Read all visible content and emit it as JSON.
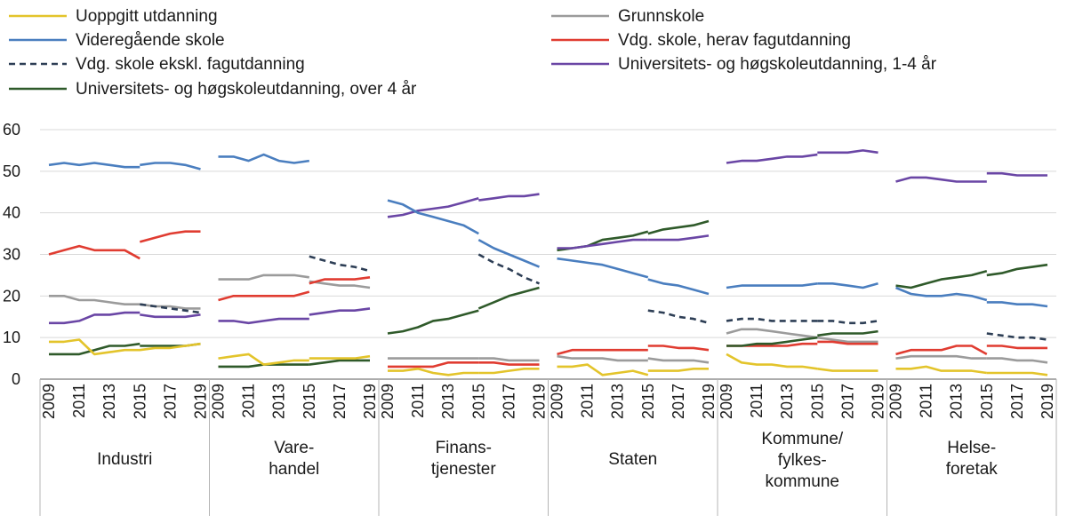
{
  "chart_data": {
    "type": "line",
    "ylim": [
      0,
      60
    ],
    "yticks": [
      0,
      10,
      20,
      30,
      40,
      50,
      60
    ],
    "years": [
      2009,
      2010,
      2011,
      2012,
      2013,
      2014,
      2015,
      2016,
      2017,
      2018,
      2019
    ],
    "year_tick_labels": [
      "2009",
      "2011",
      "2013",
      "2015",
      "2017",
      "2019"
    ],
    "series_meta": [
      {
        "key": "uopp",
        "name": "Uoppgitt utdanning",
        "color": "#e3c42b",
        "dash": false
      },
      {
        "key": "grunn",
        "name": "Grunnskole",
        "color": "#9b9b9b",
        "dash": false
      },
      {
        "key": "vgs",
        "name": "Videregående skole",
        "color": "#4a7ebf",
        "dash": false
      },
      {
        "key": "fag",
        "name": "Vdg. skole, herav fagutdanning",
        "color": "#e03c31",
        "dash": false
      },
      {
        "key": "ekskl",
        "name": "Vdg. skole ekskl. fagutdanning",
        "color": "#2d3e55",
        "dash": true
      },
      {
        "key": "uh14",
        "name": "Universitets- og høgskoleutdanning, 1-4 år",
        "color": "#6a46a5",
        "dash": false
      },
      {
        "key": "uh4",
        "name": "Universitets- og høgskoleutdanning, over 4 år",
        "color": "#2f5a2a",
        "dash": false
      }
    ],
    "panels": [
      {
        "label": [
          "Industri"
        ],
        "series": {
          "uopp": [
            [
              9,
              9,
              9.5,
              6,
              6.5,
              7,
              7,
              7.5,
              7.5,
              8,
              8.5
            ],
            [
              null,
              null,
              null,
              null,
              null,
              null,
              null,
              null,
              null,
              null,
              null
            ]
          ],
          "grunn": [
            [
              20,
              20,
              19,
              19,
              18.5,
              18,
              18
            ],
            [
              null,
              null,
              null,
              null,
              null,
              null,
              18,
              17.5,
              17.5,
              17,
              17
            ]
          ],
          "vgs": [
            [
              51.5,
              52,
              51.5,
              52,
              51.5,
              51,
              51
            ],
            [
              null,
              null,
              null,
              null,
              null,
              null,
              51.5,
              52,
              52,
              51.5,
              50.5
            ]
          ],
          "fag": [
            [
              30,
              31,
              32,
              31,
              31,
              31,
              29
            ],
            [
              null,
              null,
              null,
              null,
              null,
              null,
              33,
              34,
              35,
              35.5,
              35.5
            ]
          ],
          "ekskl": [
            [
              null,
              null,
              null,
              null,
              null,
              null,
              18,
              17.5,
              17,
              16.5,
              16
            ],
            [
              null,
              null,
              null,
              null,
              null,
              null,
              null,
              null,
              null,
              null,
              null
            ]
          ],
          "uh14": [
            [
              13.5,
              13.5,
              14,
              15.5,
              15.5,
              16,
              16
            ],
            [
              null,
              null,
              null,
              null,
              null,
              null,
              15.5,
              15,
              15,
              15,
              15.5
            ]
          ],
          "uh4": [
            [
              6,
              6,
              6,
              7,
              8,
              8,
              8.5
            ],
            [
              null,
              null,
              null,
              null,
              null,
              null,
              8,
              8,
              8,
              8,
              8.5
            ]
          ]
        }
      },
      {
        "label": [
          "Vare-",
          "handel"
        ],
        "series": {
          "uopp": [
            [
              5,
              5.5,
              6,
              3.5,
              4,
              4.5,
              4.5
            ],
            [
              null,
              null,
              null,
              null,
              null,
              null,
              5,
              5,
              5,
              5,
              5.5
            ]
          ],
          "grunn": [
            [
              24,
              24,
              24,
              25,
              25,
              25,
              24.5
            ],
            [
              null,
              null,
              null,
              null,
              null,
              null,
              23.5,
              23,
              22.5,
              22.5,
              22
            ]
          ],
          "vgs": [
            [
              53.5,
              53.5,
              52.5,
              54,
              52.5,
              52,
              52.5
            ],
            [
              null,
              null,
              null,
              null,
              null,
              null,
              null,
              null,
              null,
              null,
              null
            ]
          ],
          "fag": [
            [
              19,
              20,
              20,
              20,
              20,
              20,
              21
            ],
            [
              null,
              null,
              null,
              null,
              null,
              null,
              23,
              24,
              24,
              24,
              24.5
            ]
          ],
          "ekskl": [
            [
              null,
              null,
              null,
              null,
              null,
              null,
              29.5,
              28.5,
              27.5,
              27,
              26
            ]
          ],
          "uh14": [
            [
              14,
              14,
              13.5,
              14,
              14.5,
              14.5,
              14.5
            ],
            [
              null,
              null,
              null,
              null,
              null,
              null,
              15.5,
              16,
              16.5,
              16.5,
              17
            ]
          ],
          "uh4": [
            [
              3,
              3,
              3,
              3.5,
              3.5,
              3.5,
              3.5
            ],
            [
              null,
              null,
              null,
              null,
              null,
              null,
              3.5,
              4,
              4.5,
              4.5,
              4.5
            ]
          ]
        }
      },
      {
        "label": [
          "Finans-",
          "tjenester"
        ],
        "series": {
          "uopp": [
            [
              2,
              2,
              2.5,
              1.5,
              1,
              1.5,
              1.5
            ],
            [
              null,
              null,
              null,
              null,
              null,
              null,
              1.5,
              1.5,
              2,
              2.5,
              2.5
            ]
          ],
          "grunn": [
            [
              5,
              5,
              5,
              5,
              5,
              5,
              5
            ],
            [
              null,
              null,
              null,
              null,
              null,
              null,
              5,
              5,
              4.5,
              4.5,
              4.5
            ]
          ],
          "vgs": [
            [
              43,
              42,
              40,
              39,
              38,
              37,
              35
            ],
            [
              null,
              null,
              null,
              null,
              null,
              null,
              33.5,
              31.5,
              30,
              28.5,
              27
            ]
          ],
          "fag": [
            [
              3,
              3,
              3,
              3,
              4,
              4,
              4
            ],
            [
              null,
              null,
              null,
              null,
              null,
              null,
              4,
              4,
              3.5,
              3.5,
              3.5
            ]
          ],
          "ekskl": [
            [
              null,
              null,
              null,
              null,
              null,
              null,
              30,
              28,
              26.5,
              24.5,
              23
            ]
          ],
          "uh14": [
            [
              39,
              39.5,
              40.5,
              41,
              41.5,
              42.5,
              43.5
            ],
            [
              null,
              null,
              null,
              null,
              null,
              null,
              43,
              43.5,
              44,
              44,
              44.5
            ]
          ],
          "uh4": [
            [
              11,
              11.5,
              12.5,
              14,
              14.5,
              15.5,
              16.5
            ],
            [
              null,
              null,
              null,
              null,
              null,
              null,
              17,
              18.5,
              20,
              21,
              22
            ]
          ]
        }
      },
      {
        "label": [
          "Staten"
        ],
        "series": {
          "uopp": [
            [
              3,
              3,
              3.5,
              1,
              1.5,
              2,
              1
            ],
            [
              null,
              null,
              null,
              null,
              null,
              null,
              2,
              2,
              2,
              2.5,
              2.5
            ]
          ],
          "grunn": [
            [
              5.5,
              5,
              5,
              5,
              4.5,
              4.5,
              4.5
            ],
            [
              null,
              null,
              null,
              null,
              null,
              null,
              5,
              4.5,
              4.5,
              4.5,
              4
            ]
          ],
          "vgs": [
            [
              29,
              28.5,
              28,
              27.5,
              26.5,
              25.5,
              24.5
            ],
            [
              null,
              null,
              null,
              null,
              null,
              null,
              24,
              23,
              22.5,
              21.5,
              20.5
            ]
          ],
          "fag": [
            [
              6,
              7,
              7,
              7,
              7,
              7,
              7
            ],
            [
              null,
              null,
              null,
              null,
              null,
              null,
              8,
              8,
              7.5,
              7.5,
              7
            ]
          ],
          "ekskl": [
            [
              null,
              null,
              null,
              null,
              null,
              null,
              16.5,
              16,
              15,
              14.5,
              13.5
            ]
          ],
          "uh14": [
            [
              31.5,
              31.5,
              32,
              32.5,
              33,
              33.5,
              33.5
            ],
            [
              null,
              null,
              null,
              null,
              null,
              null,
              33.5,
              33.5,
              33.5,
              34,
              34.5
            ]
          ],
          "uh4": [
            [
              31,
              31.5,
              32,
              33.5,
              34,
              34.5,
              35.5
            ],
            [
              null,
              null,
              null,
              null,
              null,
              null,
              35,
              36,
              36.5,
              37,
              38
            ]
          ]
        }
      },
      {
        "label": [
          "Kommune/",
          "fylkes-",
          "kommune"
        ],
        "series": {
          "uopp": [
            [
              6,
              4,
              3.5,
              3.5,
              3,
              3,
              2.5
            ],
            [
              null,
              null,
              null,
              null,
              null,
              null,
              2.5,
              2,
              2,
              2,
              2
            ]
          ],
          "grunn": [
            [
              11,
              12,
              12,
              11.5,
              11,
              10.5,
              10
            ],
            [
              null,
              null,
              null,
              null,
              null,
              null,
              10,
              9.5,
              9,
              9,
              9
            ]
          ],
          "vgs": [
            [
              22,
              22.5,
              22.5,
              22.5,
              22.5,
              22.5,
              23
            ],
            [
              null,
              null,
              null,
              null,
              null,
              null,
              23,
              23,
              22.5,
              22,
              23
            ]
          ],
          "fag": [
            [
              8,
              8,
              8,
              8,
              8,
              8.5,
              8.5
            ],
            [
              null,
              null,
              null,
              null,
              null,
              null,
              9,
              9,
              8.5,
              8.5,
              8.5
            ]
          ],
          "ekskl": [
            [
              14,
              14.5,
              14.5,
              14,
              14,
              14,
              14
            ],
            [
              null,
              null,
              null,
              null,
              null,
              null,
              14,
              14,
              13.5,
              13.5,
              14
            ]
          ],
          "uh14": [
            [
              52,
              52.5,
              52.5,
              53,
              53.5,
              53.5,
              54
            ],
            [
              null,
              null,
              null,
              null,
              null,
              null,
              54.5,
              54.5,
              54.5,
              55,
              54.5
            ]
          ],
          "uh4": [
            [
              8,
              8,
              8.5,
              8.5,
              9,
              9.5,
              10
            ],
            [
              null,
              null,
              null,
              null,
              null,
              null,
              10.5,
              11,
              11,
              11,
              11.5
            ]
          ]
        }
      },
      {
        "label": [
          "Helse-",
          "foretak"
        ],
        "series": {
          "uopp": [
            [
              2.5,
              2.5,
              3,
              2,
              2,
              2,
              1.5
            ],
            [
              null,
              null,
              null,
              null,
              null,
              null,
              1.5,
              1.5,
              1.5,
              1.5,
              1
            ]
          ],
          "grunn": [
            [
              5,
              5.5,
              5.5,
              5.5,
              5.5,
              5,
              5
            ],
            [
              null,
              null,
              null,
              null,
              null,
              null,
              5,
              5,
              4.5,
              4.5,
              4
            ]
          ],
          "vgs": [
            [
              22,
              20.5,
              20,
              20,
              20.5,
              20,
              19
            ],
            [
              null,
              null,
              null,
              null,
              null,
              null,
              18.5,
              18.5,
              18,
              18,
              17.5
            ]
          ],
          "fag": [
            [
              6,
              7,
              7,
              7,
              8,
              8,
              6
            ],
            [
              null,
              null,
              null,
              null,
              null,
              null,
              8,
              8,
              7.5,
              7.5,
              7.5
            ]
          ],
          "ekskl": [
            [
              null,
              null,
              null,
              null,
              null,
              null,
              11,
              10.5,
              10,
              10,
              9.5
            ]
          ],
          "uh14": [
            [
              47.5,
              48.5,
              48.5,
              48,
              47.5,
              47.5,
              47.5
            ],
            [
              null,
              null,
              null,
              null,
              null,
              null,
              49.5,
              49.5,
              49,
              49,
              49
            ]
          ],
          "uh4": [
            [
              22.5,
              22,
              23,
              24,
              24.5,
              25,
              26
            ],
            [
              null,
              null,
              null,
              null,
              null,
              null,
              25,
              25.5,
              26.5,
              27,
              27.5
            ]
          ]
        }
      }
    ]
  }
}
